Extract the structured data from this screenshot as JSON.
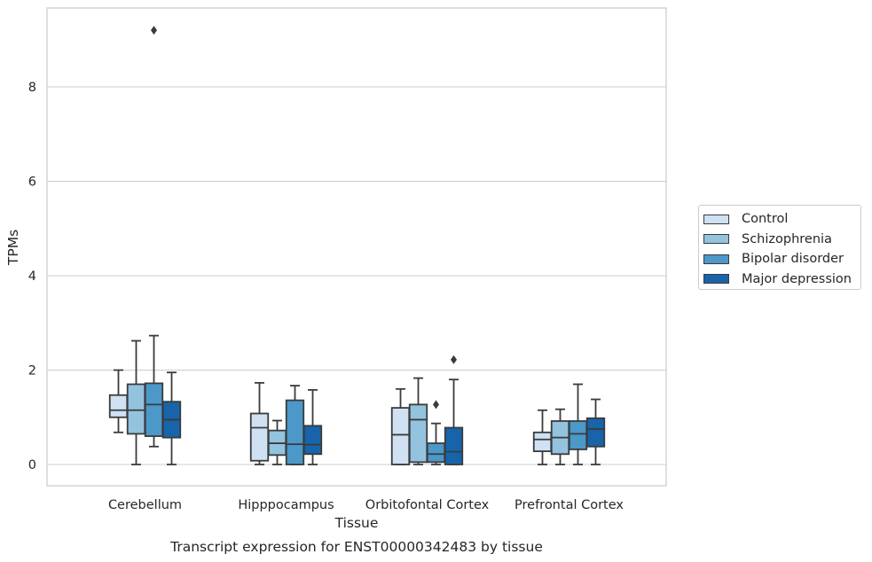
{
  "chart_data": {
    "type": "box",
    "caption": "Transcript expression for ENST00000342483 by tissue",
    "xlabel": "Tissue",
    "ylabel": "TPMs",
    "ylim": [
      -0.45,
      9.75
    ],
    "yticks": [
      0,
      2,
      4,
      6,
      8
    ],
    "grid": true,
    "legend_position": "right",
    "categories": [
      "Cerebellum",
      "Hipppocampus",
      "Orbitofontal Cortex",
      "Prefrontal Cortex"
    ],
    "series": [
      {
        "name": "Control",
        "color": "#cfe1f2",
        "boxes": [
          {
            "whislo": 0.68,
            "q1": 1.0,
            "med": 1.15,
            "q3": 1.47,
            "whishi": 2.0,
            "fliers": []
          },
          {
            "whislo": 0.0,
            "q1": 0.08,
            "med": 0.78,
            "q3": 1.08,
            "whishi": 1.73,
            "fliers": []
          },
          {
            "whislo": 0.0,
            "q1": 0.0,
            "med": 0.63,
            "q3": 1.2,
            "whishi": 1.6,
            "fliers": []
          },
          {
            "whislo": 0.0,
            "q1": 0.28,
            "med": 0.53,
            "q3": 0.68,
            "whishi": 1.15,
            "fliers": []
          }
        ]
      },
      {
        "name": "Schizophrenia",
        "color": "#93c3df",
        "boxes": [
          {
            "whislo": 0.0,
            "q1": 0.65,
            "med": 1.15,
            "q3": 1.7,
            "whishi": 2.62,
            "fliers": []
          },
          {
            "whislo": 0.0,
            "q1": 0.2,
            "med": 0.45,
            "q3": 0.72,
            "whishi": 0.93,
            "fliers": []
          },
          {
            "whislo": 0.0,
            "q1": 0.05,
            "med": 0.95,
            "q3": 1.27,
            "whishi": 1.83,
            "fliers": []
          },
          {
            "whislo": 0.0,
            "q1": 0.22,
            "med": 0.57,
            "q3": 0.92,
            "whishi": 1.17,
            "fliers": []
          }
        ]
      },
      {
        "name": "Bipolar disorder",
        "color": "#4b98c9",
        "boxes": [
          {
            "whislo": 0.38,
            "q1": 0.6,
            "med": 1.27,
            "q3": 1.72,
            "whishi": 2.73,
            "fliers": [
              9.2
            ]
          },
          {
            "whislo": 0.0,
            "q1": 0.0,
            "med": 0.43,
            "q3": 1.36,
            "whishi": 1.67,
            "fliers": []
          },
          {
            "whislo": 0.0,
            "q1": 0.05,
            "med": 0.22,
            "q3": 0.45,
            "whishi": 0.87,
            "fliers": [
              1.27
            ]
          },
          {
            "whislo": 0.0,
            "q1": 0.32,
            "med": 0.65,
            "q3": 0.92,
            "whishi": 1.7,
            "fliers": []
          }
        ]
      },
      {
        "name": "Major depression",
        "color": "#1764ab",
        "boxes": [
          {
            "whislo": 0.0,
            "q1": 0.57,
            "med": 0.95,
            "q3": 1.33,
            "whishi": 1.95,
            "fliers": []
          },
          {
            "whislo": 0.0,
            "q1": 0.22,
            "med": 0.42,
            "q3": 0.82,
            "whishi": 1.58,
            "fliers": []
          },
          {
            "whislo": 0.0,
            "q1": 0.0,
            "med": 0.27,
            "q3": 0.78,
            "whishi": 1.8,
            "fliers": [
              2.22
            ]
          },
          {
            "whislo": 0.0,
            "q1": 0.38,
            "med": 0.75,
            "q3": 0.98,
            "whishi": 1.38,
            "fliers": []
          }
        ]
      }
    ]
  }
}
